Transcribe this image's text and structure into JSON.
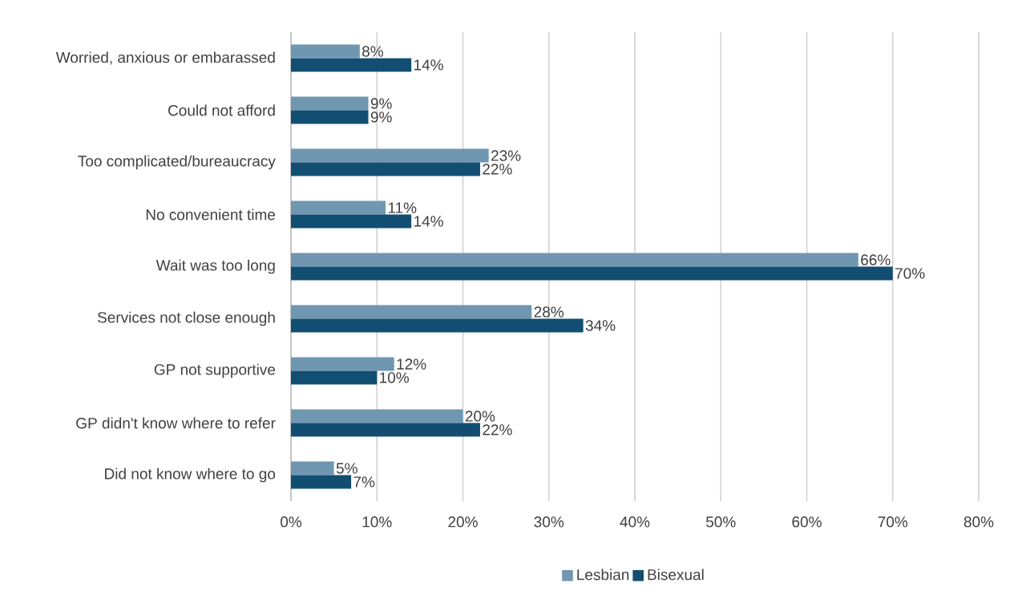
{
  "chart_data": {
    "type": "bar",
    "orientation": "horizontal",
    "categories": [
      "Worried, anxious or embarassed",
      "Could not afford",
      "Too complicated/bureaucracy",
      "No convenient time",
      "Wait was too long",
      "Services not close enough",
      "GP not supportive",
      "GP didn't know where to refer",
      "Did not know where to go"
    ],
    "series": [
      {
        "name": "Lesbian",
        "color": "#7097b1",
        "values": [
          8,
          9,
          23,
          11,
          66,
          28,
          12,
          20,
          5
        ],
        "value_labels": [
          "8%",
          "9%",
          "23%",
          "11%",
          "66%",
          "28%",
          "12%",
          "20%",
          "5%"
        ]
      },
      {
        "name": "Bisexual",
        "color": "#124e72",
        "values": [
          14,
          9,
          22,
          14,
          70,
          34,
          10,
          22,
          7
        ],
        "value_labels": [
          "14%",
          "9%",
          "22%",
          "14%",
          "70%",
          "34%",
          "10%",
          "22%",
          "7%"
        ]
      }
    ],
    "xlim": [
      0,
      80
    ],
    "xticks": [
      {
        "value": 0,
        "label": "0%"
      },
      {
        "value": 10,
        "label": "10%"
      },
      {
        "value": 20,
        "label": "20%"
      },
      {
        "value": 30,
        "label": "30%"
      },
      {
        "value": 40,
        "label": "40%"
      },
      {
        "value": 50,
        "label": "50%"
      },
      {
        "value": 60,
        "label": "60%"
      },
      {
        "value": 70,
        "label": "70%"
      },
      {
        "value": 80,
        "label": "80%"
      }
    ],
    "grid": "x",
    "legend": "bottom"
  }
}
